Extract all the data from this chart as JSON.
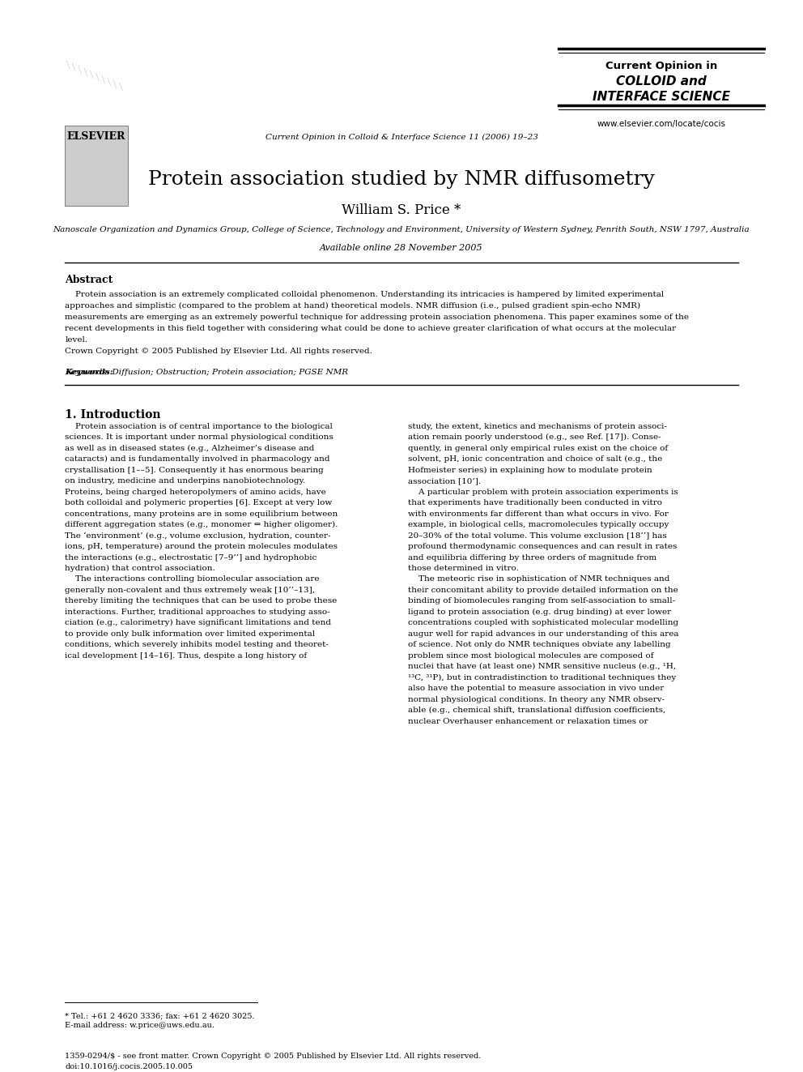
{
  "title": "Protein association studied by NMR diffusometry",
  "author": "William S. Price *",
  "affiliation": "Nanoscale Organization and Dynamics Group, College of Science, Technology and Environment, University of Western Sydney, Penrith South, NSW 1797, Australia",
  "available_online": "Available online 28 November 2005",
  "journal_header": "Current Opinion in Colloid & Interface Science 11 (2006) 19–23",
  "journal_name_line1": "Current Opinion in",
  "journal_name_line2": "COLLOID and",
  "journal_name_line3": "INTERFACE SCIENCE",
  "journal_url": "www.elsevier.com/locate/cocis",
  "elsevier_text": "ELSEVIER",
  "abstract_title": "Abstract",
  "abstract_text": "Protein association is an extremely complicated colloidal phenomenon. Understanding its intricacies is hampered by limited experimental\napproaches and simplistic (compared to the problem at hand) theoretical models. NMR diffusion (i.e., pulsed gradient spin-echo NMR)\nmeasurements are emerging as an extremely powerful technique for addressing protein association phenomena. This paper examines some of the\nrecent developments in this field together with considering what could be done to achieve greater clarification of what occurs at the molecular\nlevel.\nCrown Copyright © 2005 Published by Elsevier Ltd. All rights reserved.",
  "keywords_line": "Keywords: Diffusion; Obstruction; Protein association; PGSE NMR",
  "section1_title": "1. Introduction",
  "section1_col1": "    Protein association is of central importance to the biological sciences. It is important under normal physiological conditions as well as in diseased states (e.g., Alzheimer’s disease and cataracts) and is fundamentally involved in pharmacology and crystallisation [1–5]. Consequently it has enormous bearing on industry, medicine and underpins nanobiotechnology. Proteins, being charged heteropolymers of amino acids, have both colloidal and polymeric properties [6]. Except at very low concentrations, many proteins are in some equilibrium between different aggregation states (e.g., monomer ⇔ higher oligomer). The ‘environment’ (e.g., volume exclusion, hydration, counter-ions, pH, temperature) around the protein molecules modulates the interactions (e.g., electrostatic [7–9’’] and hydrophobic hydration) that control association.\n    The interactions controlling biomolecular association are generally non-covalent and thus extremely weak [10’’–13], thereby limiting the techniques that can be used to probe these interactions. Further, traditional approaches to studying association (e.g., calorimetry) have significant limitations and tend to provide only bulk information over limited experimental conditions, which severely inhibits model testing and theoretical development [14–16]. Thus, despite a long history of",
  "section1_col2": "study, the extent, kinetics and mechanisms of protein association remain poorly understood (e.g., see Ref. [17]). Consequently, in general only empirical rules exist on the choice of solvent, pH, ionic concentration and choice of salt (e.g., the Hofmeister series) in explaining how to modulate protein association [10’].\n    A particular problem with protein association experiments is that experiments have traditionally been conducted in vitro with environments far different than what occurs in vivo. For example, in biological cells, macromolecules typically occupy 20–30% of the total volume. This volume exclusion [18’’] has profound thermodynamic consequences and can result in rates and equilibria differing by three orders of magnitude from those determined in vitro.\n    The meteoric rise in sophistication of NMR techniques and their concomitant ability to provide detailed information on the binding of biomolecules ranging from self-association to small-ligand to protein association (e.g. drug binding) at ever lower concentrations coupled with sophisticated molecular modelling augur well for rapid advances in our understanding of this area of science. Not only do NMR techniques obviate any labelling problem since most biological molecules are composed of nuclei that have (at least one) NMR sensitive nucleus (e.g., ¹H, ¹³C, ³¹P), but in contradistinction to traditional techniques they also have the potential to measure association in vivo under normal physiological conditions. In theory any NMR observable (e.g., chemical shift, translational diffusion coefficients, nuclear Overhauser enhancement or relaxation times or",
  "footnote_star": "* Tel.: +61 2 4620 3336; fax: +61 2 4620 3025.",
  "footnote_email": "E-mail address: w.price@uws.edu.au.",
  "footer_issn": "1359-0294/$ - see front matter. Crown Copyright © 2005 Published by Elsevier Ltd. All rights reserved.",
  "footer_doi": "doi:10.1016/j.cocis.2005.10.005",
  "bg_color": "#ffffff",
  "text_color": "#000000",
  "link_color": "#0000cc"
}
